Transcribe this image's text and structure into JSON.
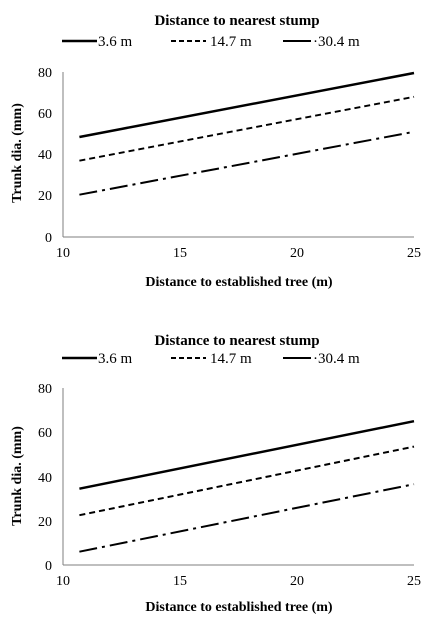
{
  "colors": {
    "line": "#000000",
    "axis": "#7f7f7f",
    "background": "#ffffff"
  },
  "chart_data": [
    {
      "type": "line",
      "legend_title": "Distance to nearest stump",
      "legend_position": "top",
      "xlabel": "Distance to established tree (m)",
      "ylabel": "Trunk dia. (mm)",
      "xlim": [
        10,
        25
      ],
      "ylim": [
        0,
        80
      ],
      "xticks": [
        10,
        15,
        20,
        25
      ],
      "yticks": [
        0,
        20,
        40,
        60,
        80
      ],
      "grid": false,
      "series": [
        {
          "name": "3.6 m",
          "style": "solid",
          "x": [
            10.7,
            25
          ],
          "y": [
            48.5,
            79.5
          ]
        },
        {
          "name": "14.7 m",
          "style": "dashed",
          "x": [
            10.7,
            25
          ],
          "y": [
            37,
            68
          ]
        },
        {
          "name": "·30.4 m",
          "style": "dashdot",
          "x": [
            10.7,
            25
          ],
          "y": [
            20.5,
            51
          ]
        }
      ]
    },
    {
      "type": "line",
      "legend_title": "Distance to nearest stump",
      "legend_position": "top",
      "xlabel": "Distance to established tree (m)",
      "ylabel": "Trunk dia. (mm)",
      "xlim": [
        10,
        25
      ],
      "ylim": [
        0,
        80
      ],
      "xticks": [
        10,
        15,
        20,
        25
      ],
      "yticks": [
        0,
        20,
        40,
        60,
        80
      ],
      "grid": false,
      "series": [
        {
          "name": "3.6 m",
          "style": "solid",
          "x": [
            10.7,
            25
          ],
          "y": [
            34.5,
            65
          ]
        },
        {
          "name": "14.7 m",
          "style": "dashed",
          "x": [
            10.7,
            25
          ],
          "y": [
            22.5,
            53.5
          ]
        },
        {
          "name": "·30.4 m",
          "style": "dashdot",
          "x": [
            10.7,
            25
          ],
          "y": [
            6,
            36.5
          ]
        }
      ]
    }
  ]
}
